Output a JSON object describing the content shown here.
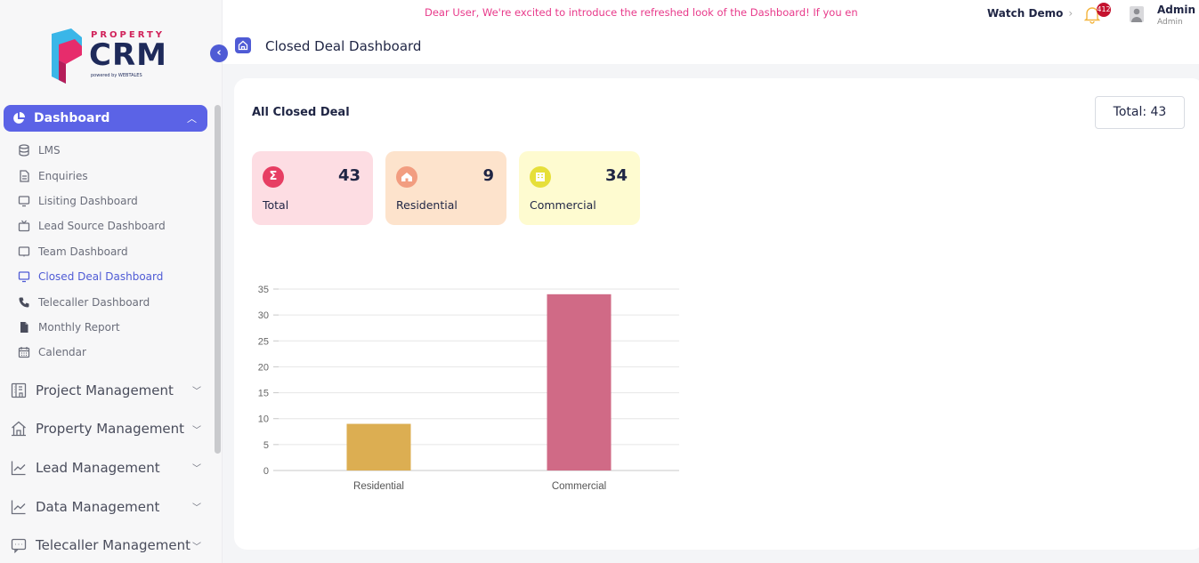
{
  "brand": {
    "top_text": "PROPERTY",
    "name": "CRM",
    "powered_by": "powered by WEBTALES"
  },
  "sidebar": {
    "active": {
      "label": "Dashboard",
      "icon": "pie-chart-icon"
    },
    "sub_items": [
      {
        "label": "LMS",
        "icon": "database-icon"
      },
      {
        "label": "Enquiries",
        "icon": "document-icon"
      },
      {
        "label": "Lisiting Dashboard",
        "icon": "monitor-icon"
      },
      {
        "label": "Lead Source Dashboard",
        "icon": "tv-icon"
      },
      {
        "label": "Team Dashboard",
        "icon": "screen-icon"
      },
      {
        "label": "Closed Deal Dashboard",
        "icon": "monitor-icon",
        "active": true
      },
      {
        "label": "Telecaller Dashboard",
        "icon": "phone-icon"
      },
      {
        "label": "Monthly Report",
        "icon": "file-icon"
      },
      {
        "label": "Calendar",
        "icon": "calendar-icon"
      }
    ],
    "groups": [
      {
        "label": "Project Management",
        "icon": "building-icon"
      },
      {
        "label": "Property Management",
        "icon": "home-icon"
      },
      {
        "label": "Lead Management",
        "icon": "trend-icon"
      },
      {
        "label": "Data Management",
        "icon": "trend-icon"
      },
      {
        "label": "Telecaller Management",
        "icon": "chat-icon"
      }
    ]
  },
  "header": {
    "announcement": "Dear User, We're excited to introduce the refreshed look of the Dashboard! If you en",
    "watch_demo": "Watch Demo",
    "watch_demo_arrow": "›",
    "notification_count": "412",
    "user_name": "Admin",
    "user_role": "Admin",
    "page_title": "Closed Deal Dashboard"
  },
  "card": {
    "title": "All Closed Deal",
    "total": "Total: 43",
    "stats": [
      {
        "label": "Total",
        "value": "43",
        "icon": "sigma-icon",
        "bg": "#fddde3",
        "icon_bg": "#e73e63"
      },
      {
        "label": "Residential",
        "value": "9",
        "icon": "house-icon",
        "bg": "#fde3cc",
        "icon_bg": "#f29d80"
      },
      {
        "label": "Commercial",
        "value": "34",
        "icon": "building-icon",
        "bg": "#fefbd0",
        "icon_bg": "#e6df3a"
      }
    ]
  },
  "chart_data": {
    "type": "bar",
    "categories": [
      "Residential",
      "Commercial"
    ],
    "values": [
      9,
      34
    ],
    "colors": [
      "#dcae52",
      "#d06a86"
    ],
    "ylim": [
      0,
      35
    ],
    "yticks": [
      0,
      5,
      10,
      15,
      20,
      25,
      30,
      35
    ],
    "grid": true
  }
}
